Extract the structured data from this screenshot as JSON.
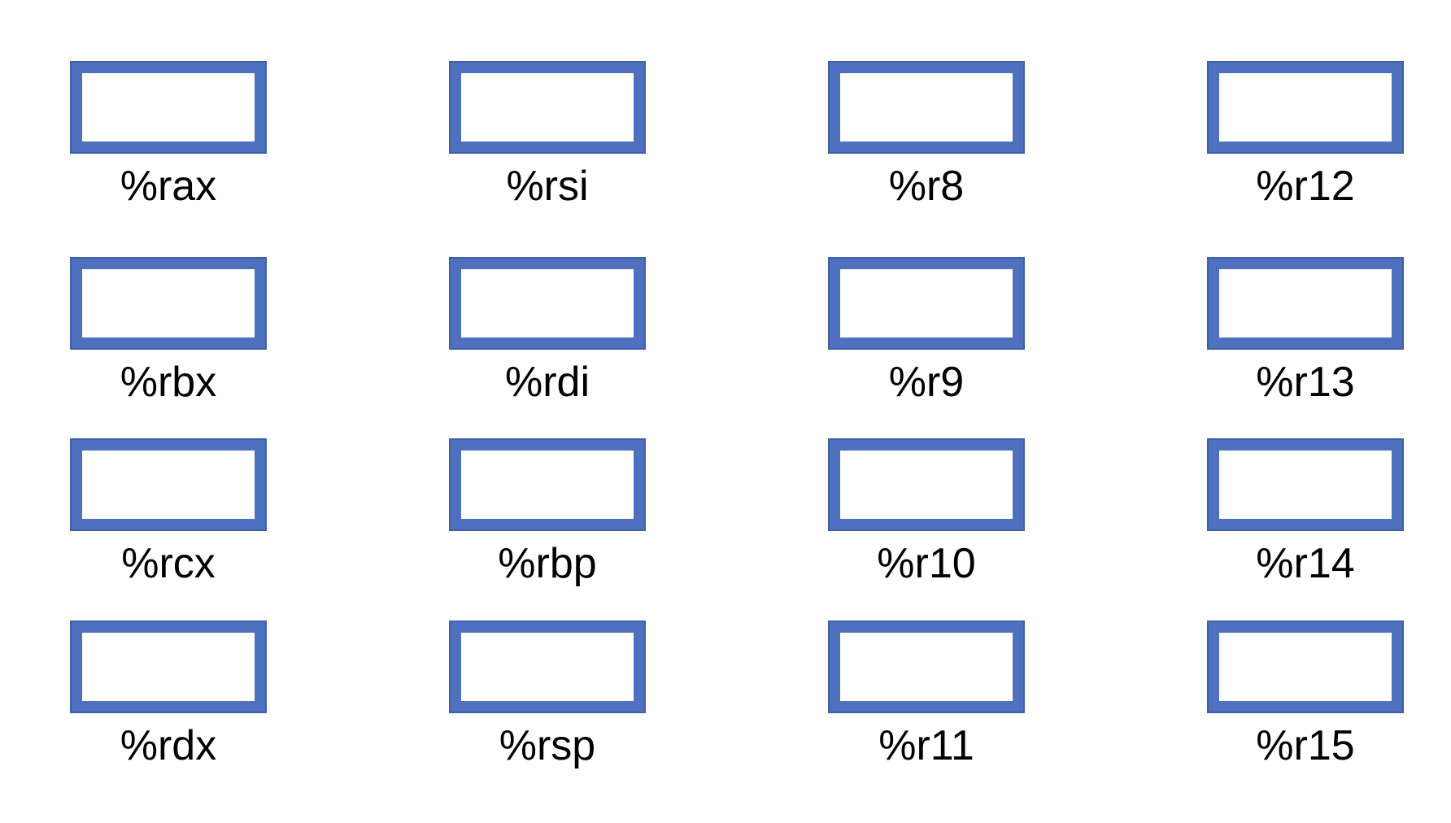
{
  "colors": {
    "box_fill": "#4F70BE",
    "box_edge": "#3F5FA8",
    "label": "#000000",
    "background": "#ffffff"
  },
  "columns": [
    {
      "registers": [
        {
          "name": "%rax"
        },
        {
          "name": "%rbx"
        },
        {
          "name": "%rcx"
        },
        {
          "name": "%rdx"
        }
      ]
    },
    {
      "registers": [
        {
          "name": "%rsi"
        },
        {
          "name": "%rdi"
        },
        {
          "name": "%rbp"
        },
        {
          "name": "%rsp"
        }
      ]
    },
    {
      "registers": [
        {
          "name": "%r8"
        },
        {
          "name": "%r9"
        },
        {
          "name": "%r10"
        },
        {
          "name": "%r11"
        }
      ]
    },
    {
      "registers": [
        {
          "name": "%r12"
        },
        {
          "name": "%r13"
        },
        {
          "name": "%r14"
        },
        {
          "name": "%r15"
        }
      ]
    }
  ]
}
